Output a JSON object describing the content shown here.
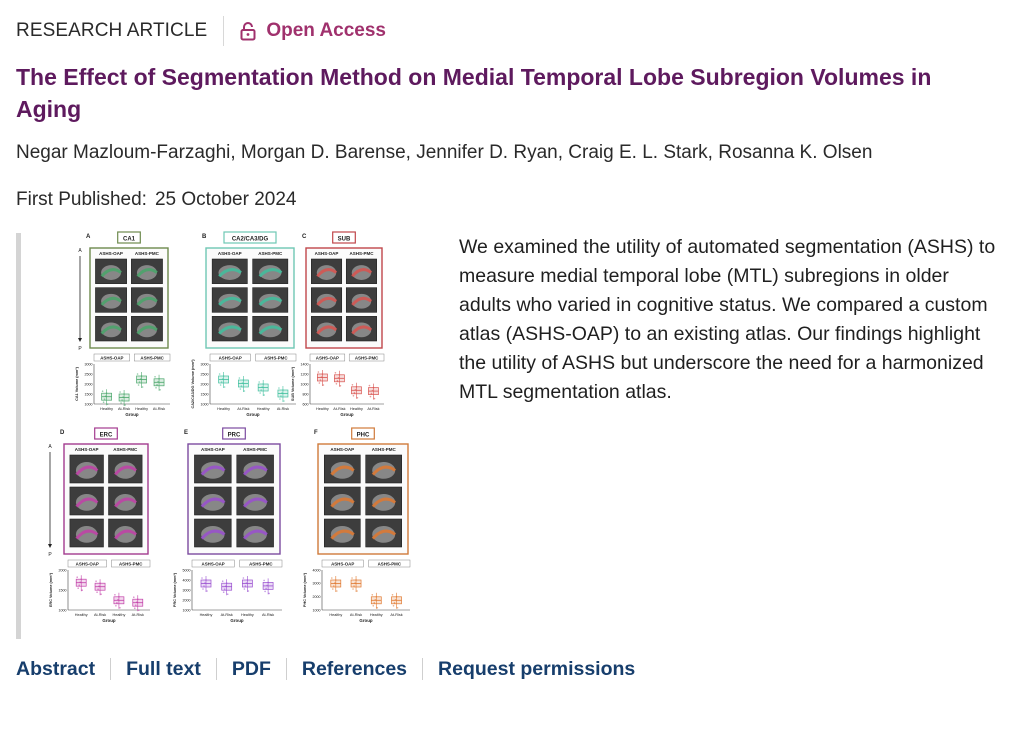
{
  "header": {
    "article_type": "RESEARCH ARTICLE",
    "access_label": "Open Access"
  },
  "article": {
    "title": "The Effect of Segmentation Method on Medial Temporal Lobe Subregion Volumes in Aging",
    "authors": "Negar Mazloum-Farzaghi, Morgan D. Barense, Jennifer D. Ryan, Craig E. L. Stark, Rosanna K. Olsen",
    "published_label": "First Published:",
    "published_date": "25 October 2024",
    "abstract": "We examined the utility of automated segmentation (ASHS) to measure medial temporal lobe (MTL) subregions in older adults who varied in cognitive status. We compared a custom atlas (ASHS-OAP) to an existing atlas. Our findings highlight the utility of ASHS but underscore the need for a harmonized MTL segmentation atlas."
  },
  "figure": {
    "panels": [
      {
        "letter": "A",
        "region": "CA1",
        "color": "#6e8a4e",
        "tint": "#49a66a",
        "ylabel": "CA1 Volume (mm³)",
        "ticks": [
          "3000",
          "2500",
          "2000",
          "1500",
          "1000"
        ]
      },
      {
        "letter": "B",
        "region": "CA2/CA3/DG",
        "color": "#6fc7b4",
        "tint": "#3fbf9e",
        "ylabel": "CA2/CA3/DG Volume (mm³)",
        "ticks": [
          "3000",
          "2500",
          "2000",
          "1500",
          "1000"
        ]
      },
      {
        "letter": "C",
        "region": "SUB",
        "color": "#c0474b",
        "tint": "#d9534f",
        "ylabel": "SUB Volume (mm³)",
        "ticks": [
          "1400",
          "1200",
          "1000",
          "800",
          "600"
        ]
      },
      {
        "letter": "D",
        "region": "ERC",
        "color": "#a33b8f",
        "tint": "#c23fa8",
        "ylabel": "ERC Volume (mm³)",
        "ticks": [
          "2000",
          "1500",
          "1000"
        ]
      },
      {
        "letter": "E",
        "region": "PRC",
        "color": "#7c4ba0",
        "tint": "#9a4fd0",
        "ylabel": "PRC Volume (mm³)",
        "ticks": [
          "5000",
          "4000",
          "3000",
          "2000",
          "1000"
        ]
      },
      {
        "letter": "F",
        "region": "PHC",
        "color": "#d07a3a",
        "tint": "#e0782f",
        "ylabel": "PHC Volume (mm³)",
        "ticks": [
          "4000",
          "3000",
          "2000",
          "1000"
        ]
      }
    ],
    "atlas_labels": [
      "ASHS-OAP",
      "ASHS-PMC"
    ],
    "group_labels": [
      "Healthy",
      "At-Risk",
      "Healthy",
      "At-Risk"
    ],
    "x_axis_label": "Group",
    "axis_top": "A",
    "axis_bottom": "P"
  },
  "nav": {
    "links": [
      "Abstract",
      "Full text",
      "PDF",
      "References",
      "Request permissions"
    ]
  },
  "colors": {
    "title": "#5e1a5e",
    "open_access": "#a0316d",
    "links": "#173e6c"
  }
}
